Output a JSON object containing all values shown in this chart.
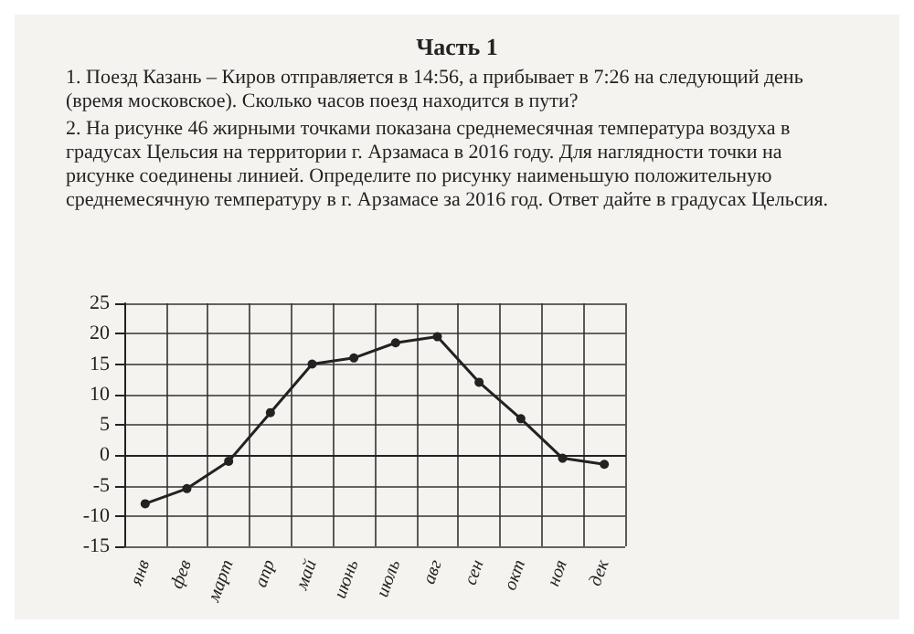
{
  "chart_data": {
    "type": "line",
    "title": "Часть 1",
    "annotations": [
      "1. Поезд Казань – Киров отправляется в 14:56, а прибывает в 7:26 на следующий день (время московское). Сколько часов поезд находится в пути?",
      "2. На рисунке 46 жирными точками показана среднемесячная температура воздуха в градусах Цельсия на территории г. Арзамаса в 2016 году. Для наглядности точки на рисунке соединены линией. Определите по рисунку наименьшую положительную среднемесячную температуру в г. Арзамасе за 2016 год. Ответ дайте в градусах Цельсия."
    ],
    "categories": [
      "янв",
      "фев",
      "март",
      "апр",
      "май",
      "июнь",
      "июль",
      "авг",
      "сен",
      "окт",
      "ноя",
      "дек"
    ],
    "series": [
      {
        "color": "#222222",
        "values": [
          -8,
          -5.5,
          -1,
          7,
          15,
          16,
          18.5,
          19.5,
          12,
          6,
          -0.5,
          -1.5
        ]
      }
    ],
    "ylim": [
      -15,
      25
    ],
    "yticks": [
      -15,
      -10,
      -5,
      0,
      5,
      10,
      15,
      20,
      25
    ],
    "grid": true,
    "marker": "circle",
    "line_style": "solid"
  }
}
